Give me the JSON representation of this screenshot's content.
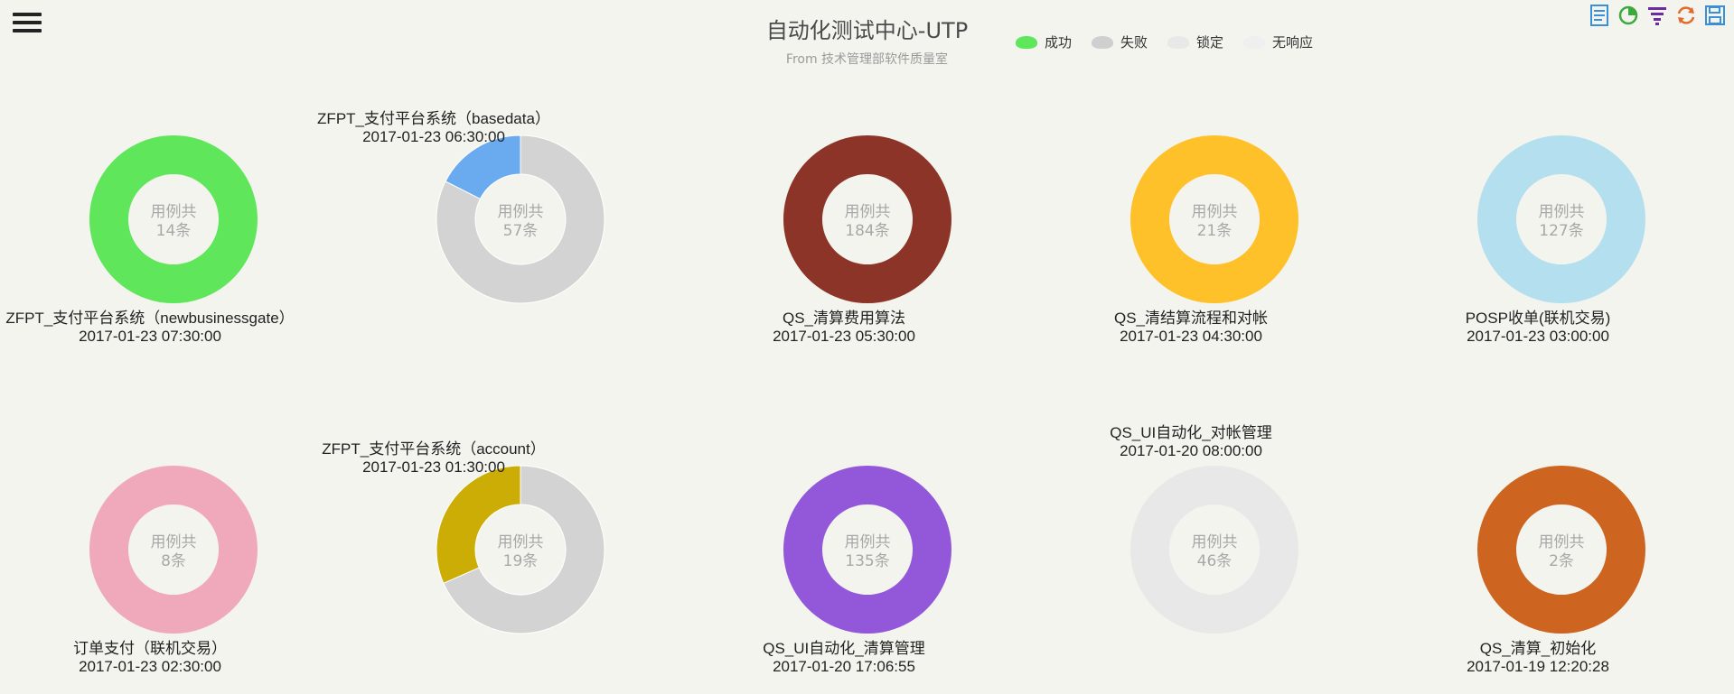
{
  "header": {
    "title": "自动化测试中心-UTP",
    "subtitle": "From 技术管理部软件质量室"
  },
  "legend": [
    {
      "label": "成功",
      "color": "#5fe65a"
    },
    {
      "label": "失败",
      "color": "#cfcfcf"
    },
    {
      "label": "锁定",
      "color": "#e8e8e8"
    },
    {
      "label": "无响应",
      "color": "#efefef"
    }
  ],
  "toolbox": [
    {
      "icon": "data-view-icon",
      "color": "#3b8fd6"
    },
    {
      "icon": "pie-chart-icon",
      "color": "#3ca93c"
    },
    {
      "icon": "funnel-icon",
      "color": "#6b2c9e"
    },
    {
      "icon": "refresh-icon",
      "color": "#e26a2c"
    },
    {
      "icon": "save-icon",
      "color": "#3b8fd6"
    }
  ],
  "chart_data": {
    "type": "pie",
    "center_prefix": "用例共",
    "center_suffix": "条",
    "charts": [
      {
        "name": "ZFPT_支付平台系统（newbusinessgate）",
        "time": "2017-01-23 07:30:00",
        "total": 14,
        "slices": [
          {
            "value": 14,
            "color": "#5fe65a"
          }
        ],
        "label_pos": "bottom"
      },
      {
        "name": "ZFPT_支付平台系统（basedata）",
        "time": "2017-01-23 06:30:00",
        "total": 57,
        "slices": [
          {
            "value": 10,
            "color": "#6aaaee"
          },
          {
            "value": 47,
            "color": "#d3d3d3"
          }
        ],
        "label_pos": "top-left"
      },
      {
        "name": "QS_清算费用算法",
        "time": "2017-01-23 05:30:00",
        "total": 184,
        "slices": [
          {
            "value": 184,
            "color": "#8b3427"
          }
        ],
        "label_pos": "bottom"
      },
      {
        "name": "QS_清结算流程和对帐",
        "time": "2017-01-23 04:30:00",
        "total": 21,
        "slices": [
          {
            "value": 21,
            "color": "#ffc12a"
          }
        ],
        "label_pos": "bottom"
      },
      {
        "name": "POSP收单(联机交易)",
        "time": "2017-01-23 03:00:00",
        "total": 127,
        "slices": [
          {
            "value": 127,
            "color": "#b3dfee"
          }
        ],
        "label_pos": "bottom"
      },
      {
        "name": "订单支付（联机交易）",
        "time": "2017-01-23 02:30:00",
        "total": 8,
        "slices": [
          {
            "value": 8,
            "color": "#efa9ba"
          }
        ],
        "label_pos": "bottom"
      },
      {
        "name": "ZFPT_支付平台系统（account）",
        "time": "2017-01-23 01:30:00",
        "total": 19,
        "slices": [
          {
            "value": 6,
            "color": "#ccad05"
          },
          {
            "value": 13,
            "color": "#d3d3d3"
          }
        ],
        "label_pos": "top-left"
      },
      {
        "name": "QS_UI自动化_清算管理",
        "time": "2017-01-20 17:06:55",
        "total": 135,
        "slices": [
          {
            "value": 135,
            "color": "#9358d9"
          }
        ],
        "label_pos": "bottom"
      },
      {
        "name": "QS_UI自动化_对帐管理",
        "time": "2017-01-20 08:00:00",
        "total": 46,
        "slices": [
          {
            "value": 46,
            "color": "#e8e8e8"
          }
        ],
        "label_pos": "top"
      },
      {
        "name": "QS_清算_初始化",
        "time": "2017-01-19 12:20:28",
        "total": 2,
        "slices": [
          {
            "value": 2,
            "color": "#cd6520"
          }
        ],
        "label_pos": "bottom"
      }
    ]
  }
}
